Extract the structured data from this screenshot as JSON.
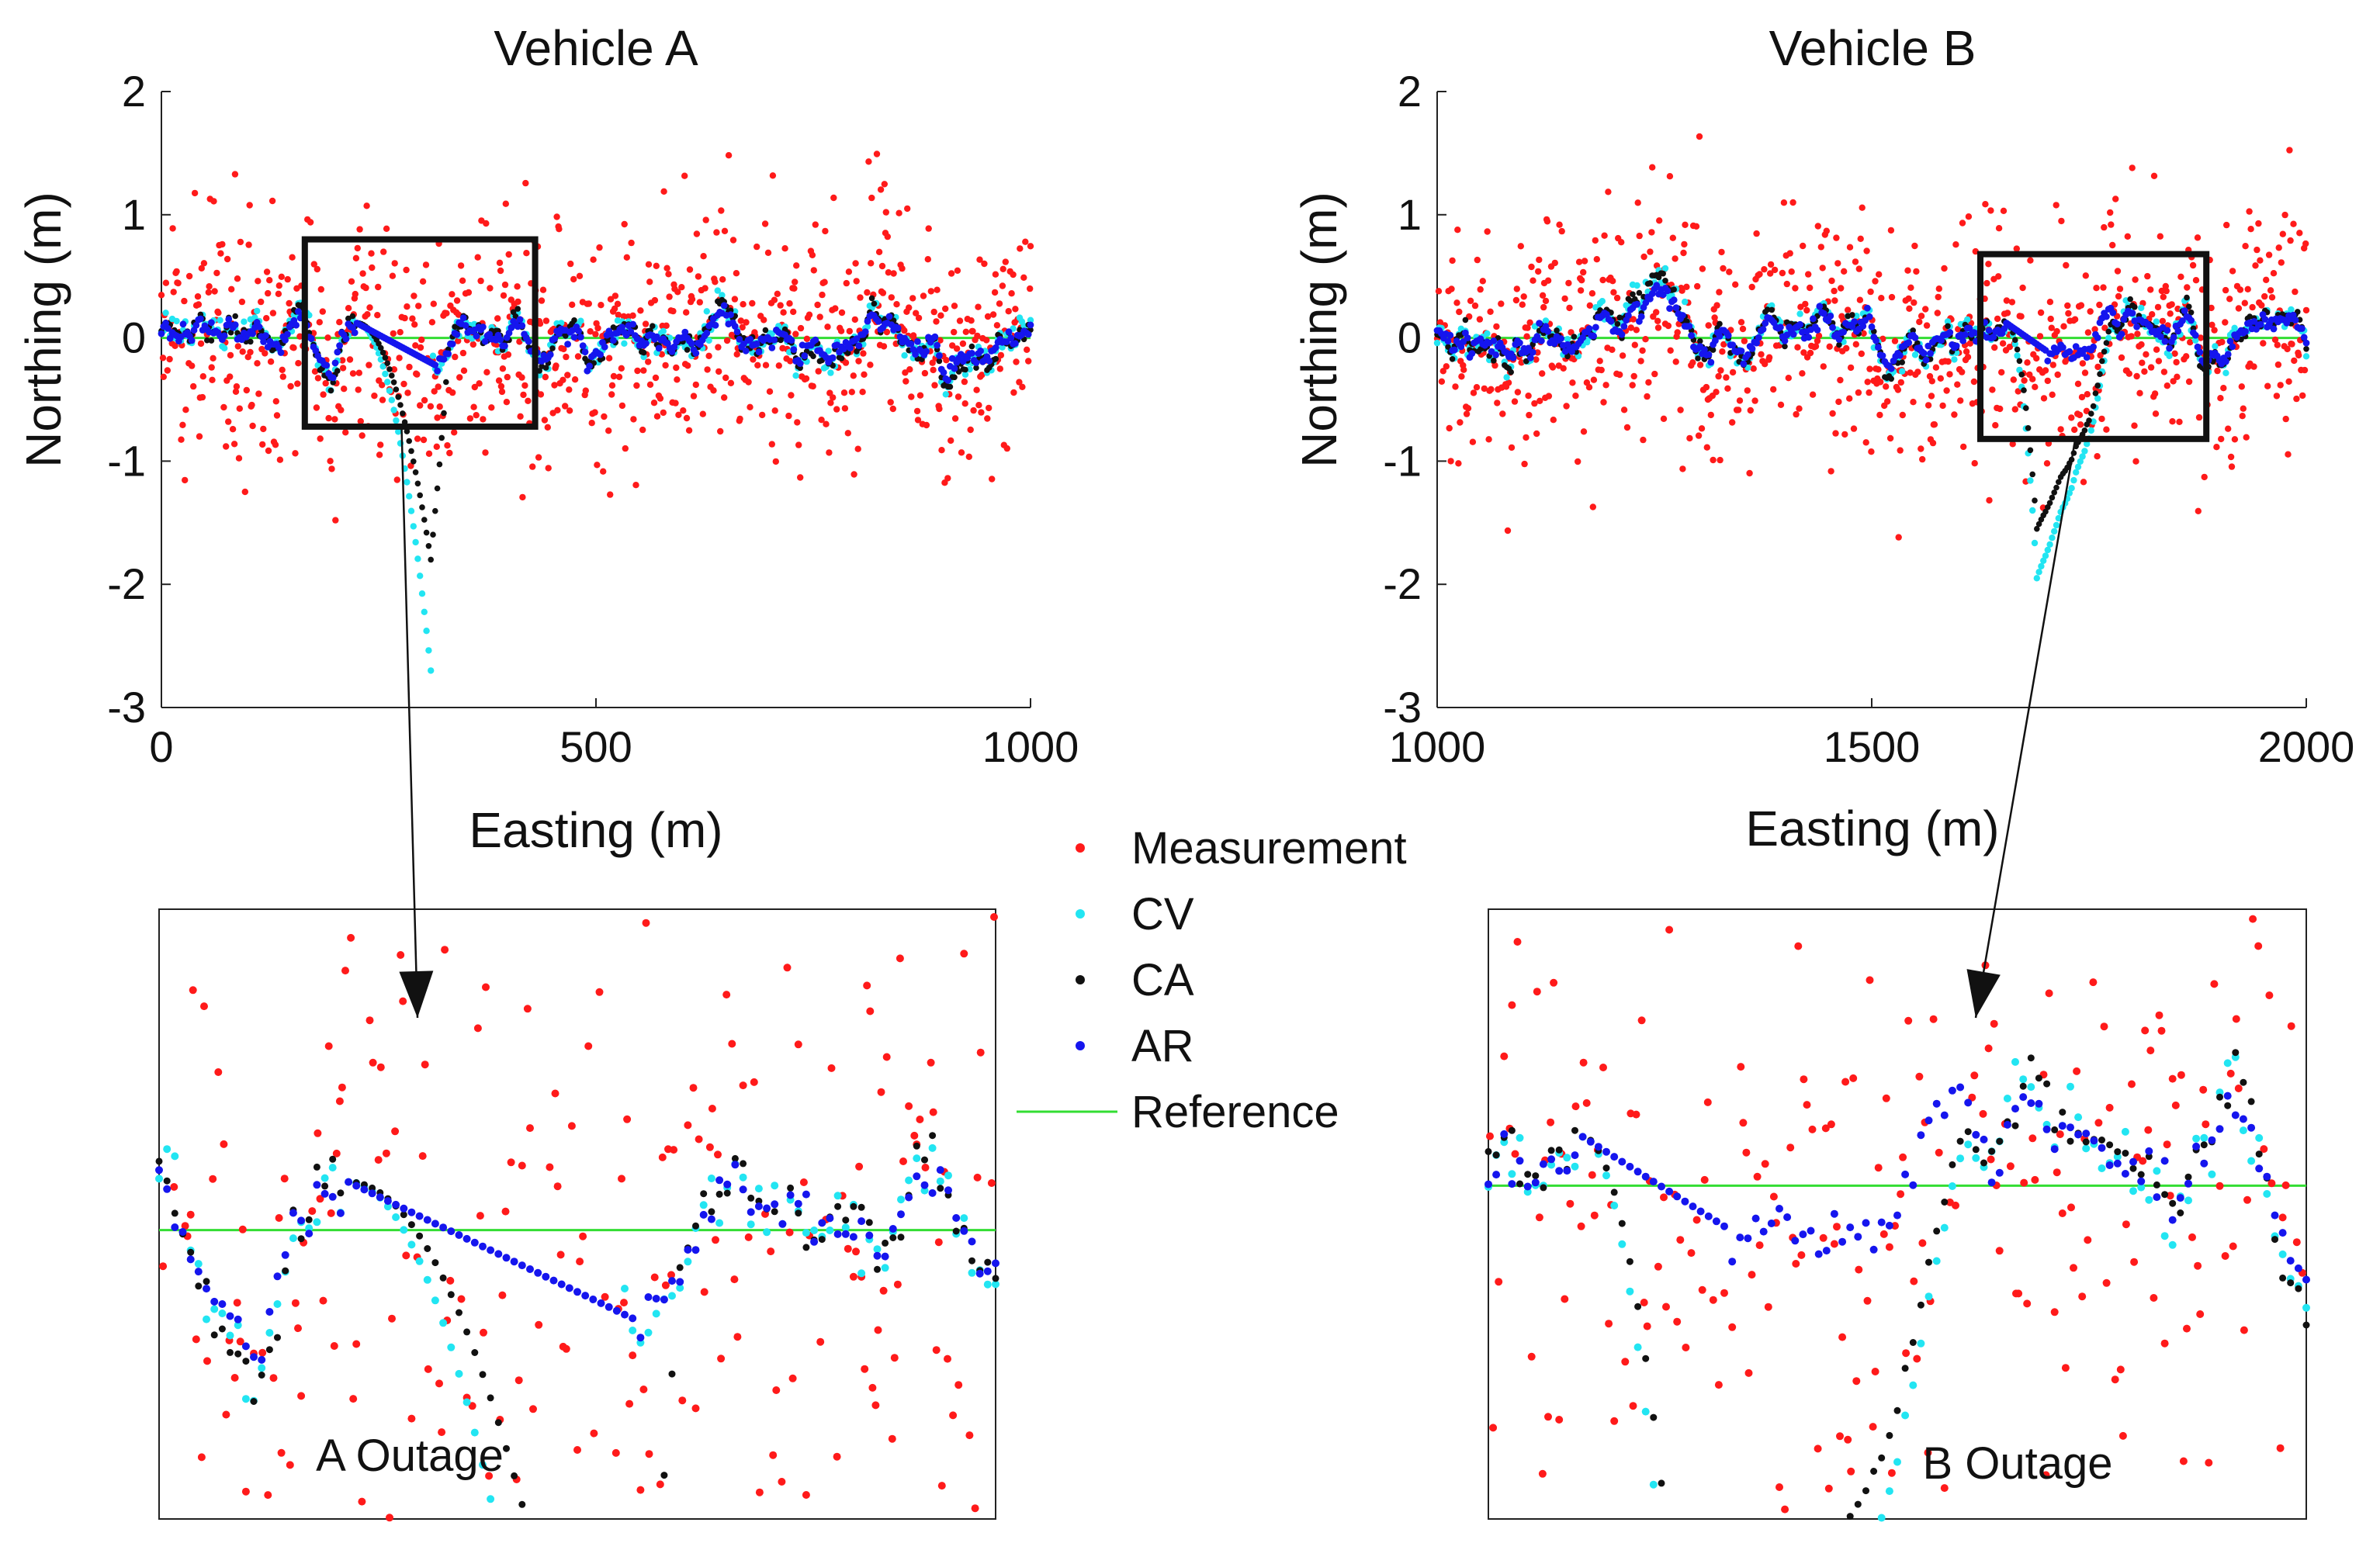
{
  "colors": {
    "measurement": "#ff1a1a",
    "cv": "#22e5f2",
    "ca": "#111111",
    "ar": "#1515ee",
    "reference": "#33dd33",
    "axis": "#222222"
  },
  "chart_data": [
    {
      "id": "vehicle-a",
      "type": "scatter",
      "title": "Vehicle A",
      "xlabel": "Easting (m)",
      "ylabel": "Northing (m)",
      "xlim": [
        0,
        1000
      ],
      "ylim": [
        -3,
        2
      ],
      "xticks": [
        0,
        500,
        1000
      ],
      "yticks": [
        -3,
        -2,
        -1,
        0,
        1,
        2
      ],
      "xtick_labels": [
        "0",
        "500",
        "1000"
      ],
      "ytick_labels": [
        "-3",
        "-2",
        "-1",
        "0",
        "1",
        "2"
      ],
      "zoom_box": {
        "x": [
          165,
          430
        ],
        "y": [
          -0.72,
          0.8
        ]
      },
      "outage": {
        "start": 225,
        "end": 310,
        "ca_min": -1.8,
        "cv_min": -2.7,
        "ca_rec": 330,
        "cv_rec": 310,
        "ar_end": 315,
        "ar_end_val": -0.22
      },
      "reference": 0,
      "legend": [
        "Measurement",
        "CV",
        "CA",
        "AR",
        "Reference"
      ]
    },
    {
      "id": "vehicle-b",
      "type": "scatter",
      "title": "Vehicle B",
      "xlabel": "Easting (m)",
      "ylabel": "Northing (m)",
      "xlim": [
        1000,
        2000
      ],
      "ylim": [
        -3,
        2
      ],
      "xticks": [
        1000,
        1500,
        2000
      ],
      "yticks": [
        -3,
        -2,
        -1,
        0,
        1,
        2
      ],
      "xtick_labels": [
        "1000",
        "1500",
        "2000"
      ],
      "ytick_labels": [
        "-3",
        "-2",
        "-1",
        "0",
        "1",
        "2"
      ],
      "zoom_box": {
        "x": [
          1625,
          1885
        ],
        "y": [
          -0.82,
          0.68
        ]
      },
      "outage": {
        "start": 1655,
        "end": 1690,
        "ca_min": -1.55,
        "cv_min": -1.95,
        "ca_rec": 1785,
        "cv_rec": 1785,
        "ar_end": 1700,
        "ar_end_val": -0.1
      },
      "reference": 0,
      "legend": [
        "Measurement",
        "CV",
        "CA",
        "AR",
        "Reference"
      ]
    }
  ],
  "insets": [
    {
      "label": "A Outage",
      "source": "vehicle-a"
    },
    {
      "label": "B Outage",
      "source": "vehicle-b"
    }
  ],
  "legend": {
    "items": [
      {
        "label": "Measurement",
        "color_key": "measurement"
      },
      {
        "label": "CV",
        "color_key": "cv"
      },
      {
        "label": "CA",
        "color_key": "ca"
      },
      {
        "label": "AR",
        "color_key": "ar"
      },
      {
        "label": "Reference",
        "color_key": "reference"
      }
    ]
  }
}
